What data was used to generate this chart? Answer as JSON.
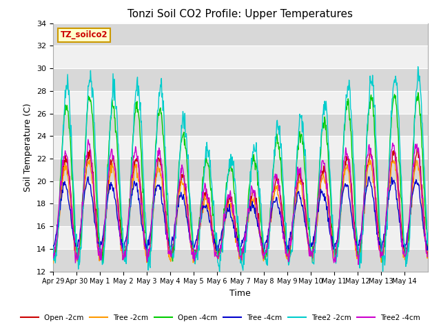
{
  "title": "Tonzi Soil CO2 Profile: Upper Temperatures",
  "xlabel": "Time",
  "ylabel": "Soil Temperature (C)",
  "ylim": [
    12,
    34
  ],
  "yticks": [
    12,
    14,
    16,
    18,
    20,
    22,
    24,
    26,
    28,
    30,
    32,
    34
  ],
  "xtick_labels": [
    "Apr 29",
    "Apr 30",
    "May 1",
    "May 2",
    "May 3",
    "May 4",
    "May 5",
    "May 6",
    "May 7",
    "May 8",
    "May 9",
    "May 10",
    "May 11",
    "May 12",
    "May 13",
    "May 14"
  ],
  "series_colors": {
    "Open -2cm": "#cc0000",
    "Tree -2cm": "#ff9900",
    "Open -4cm": "#00cc00",
    "Tree -4cm": "#0000cc",
    "Tree2 -2cm": "#00cccc",
    "Tree2 -4cm": "#cc00cc"
  },
  "legend_label": "TZ_soilco2",
  "plot_bg_color": "#f0f0f0",
  "band_color": "#d8d8d8"
}
